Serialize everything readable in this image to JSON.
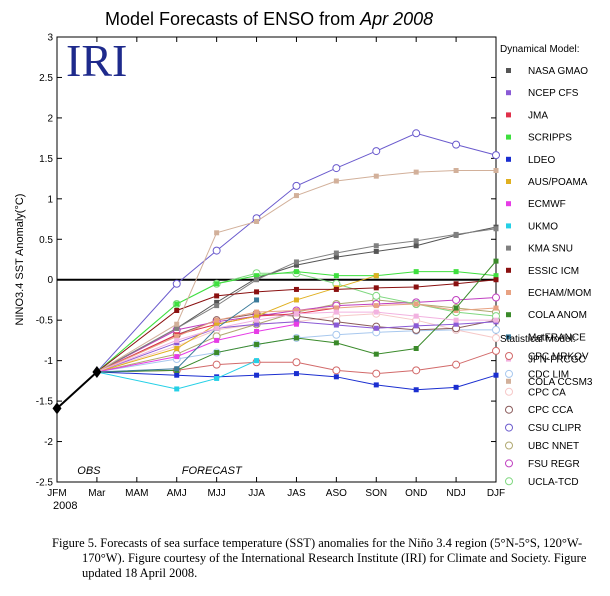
{
  "chart_data": {
    "type": "line",
    "title_main": "Model Forecasts of ENSO from",
    "title_italic": "Apr 2008",
    "logo": "IRI",
    "ylabel": "NINO3.4 SST Anomaly(°C)",
    "ylim": [
      -2.5,
      3
    ],
    "yticks": [
      "-2.5",
      "-2",
      "-1.5",
      "-1",
      "-0.5",
      "0",
      "0.5",
      "1",
      "1.5",
      "2",
      "2.5",
      "3"
    ],
    "categories": [
      "JFM",
      "Mar",
      "MAM",
      "AMJ",
      "MJJ",
      "JJA",
      "JAS",
      "ASO",
      "SON",
      "OND",
      "NDJ",
      "DJF"
    ],
    "year_label": "2008",
    "obs_label": "OBS",
    "forecast_label": "FORECAST",
    "observed": {
      "x": [
        0,
        1
      ],
      "values": [
        -1.59,
        -1.14
      ]
    },
    "dynamical_header": "Dynamical Model:",
    "statistical_header": "Statistical Model:",
    "dynamical": [
      {
        "name": "NASA GMAO",
        "color": "#555555",
        "values": [
          -0.6,
          -0.28,
          0.02,
          0.18,
          0.28,
          0.35,
          0.42,
          0.55,
          0.65
        ]
      },
      {
        "name": "NCEP CFS",
        "color": "#8a5ad6",
        "values": [
          -0.78,
          -0.6,
          -0.55,
          -0.52,
          -0.56,
          -0.6,
          -0.57,
          -0.55,
          -0.52
        ]
      },
      {
        "name": "JMA",
        "color": "#e0304a",
        "values": [
          -0.68,
          -0.55,
          -0.45,
          -0.42,
          -0.35
        ]
      },
      {
        "name": "SCRIPPS",
        "color": "#3ee03e",
        "values": [
          -0.3,
          -0.05,
          0.05,
          0.1,
          0.05,
          0.05,
          0.1,
          0.1,
          0.05
        ]
      },
      {
        "name": "LDEO",
        "color": "#1a2ed0",
        "values": [
          -1.18,
          -1.2,
          -1.18,
          -1.16,
          -1.2,
          -1.3,
          -1.36,
          -1.33,
          -1.18
        ]
      },
      {
        "name": "AUS/POAMA",
        "color": "#e0b020",
        "values": [
          -0.85,
          -0.55,
          -0.45,
          -0.25,
          -0.1,
          0.05
        ]
      },
      {
        "name": "ECMWF",
        "color": "#e63ce6",
        "values": [
          -0.95,
          -0.75,
          -0.64,
          -0.55
        ]
      },
      {
        "name": "UKMO",
        "color": "#25d0e6",
        "values": [
          -1.35,
          -1.22,
          -1.0
        ]
      },
      {
        "name": "KMA SNU",
        "color": "#808080",
        "values": [
          -0.6,
          -0.32,
          0.0,
          0.22,
          0.33,
          0.42,
          0.48,
          0.56,
          0.63
        ]
      },
      {
        "name": "ESSIC ICM",
        "color": "#8a1010",
        "values": [
          -0.38,
          -0.2,
          -0.15,
          -0.12,
          -0.12,
          -0.1,
          -0.09,
          -0.05,
          0.0
        ]
      },
      {
        "name": "ECHAM/MOM",
        "color": "#e8a282",
        "values": [
          -0.7,
          -0.5,
          -0.4,
          -0.38,
          -0.35,
          -0.32,
          -0.3,
          -0.38,
          -0.35
        ]
      },
      {
        "name": "COLA ANOM",
        "color": "#3a8a2a",
        "values": [
          -1.12,
          -0.9,
          -0.8,
          -0.72,
          -0.78,
          -0.92,
          -0.85,
          -0.35,
          0.23
        ]
      },
      {
        "name": "MetFRANCE",
        "color": "#3a7a9a",
        "values": [
          -1.1,
          -0.6,
          -0.25
        ]
      },
      {
        "name": "JPN-FRCGC",
        "color": "#f2b2e0",
        "values": [
          -0.75,
          -0.6,
          -0.5,
          -0.42,
          -0.4,
          -0.4,
          -0.45,
          -0.5,
          -0.5
        ]
      },
      {
        "name": "COLA CCSM3",
        "color": "#d2b09a",
        "values": [
          -0.55,
          0.58,
          0.72,
          1.04,
          1.22,
          1.28,
          1.33,
          1.35,
          1.35
        ]
      }
    ],
    "statistical": [
      {
        "name": "CPC MRKOV",
        "color": "#d26a6a",
        "values": [
          -1.12,
          -1.05,
          -1.02,
          -1.02,
          -1.12,
          -1.16,
          -1.12,
          -1.05,
          -0.88
        ]
      },
      {
        "name": "CDC LIM",
        "color": "#a8c8ee",
        "values": [
          -0.98,
          -0.9,
          -0.8,
          -0.72,
          -0.68,
          -0.65,
          -0.63,
          -0.62,
          -0.62
        ]
      },
      {
        "name": "CPC CA",
        "color": "#f6c8c8",
        "values": [
          -0.82,
          -0.62,
          -0.55,
          -0.52,
          -0.45,
          -0.42,
          -0.5,
          -0.62,
          -0.72
        ]
      },
      {
        "name": "CPC CCA",
        "color": "#8a5a5a",
        "values": [
          -0.68,
          -0.5,
          -0.42,
          -0.45,
          -0.52,
          -0.58,
          -0.62,
          -0.6,
          -0.5
        ]
      },
      {
        "name": "CSU CLIPR",
        "color": "#6a5acd",
        "values": [
          -0.05,
          0.36,
          0.76,
          1.16,
          1.38,
          1.59,
          1.81,
          1.67,
          1.54
        ]
      },
      {
        "name": "UBC NNET",
        "color": "#b0a870",
        "values": [
          -0.92,
          -0.7,
          -0.55,
          -0.4,
          -0.3,
          -0.25,
          -0.3,
          -0.35,
          -0.4
        ]
      },
      {
        "name": "FSU REGR",
        "color": "#c040c0",
        "values": [
          -0.62,
          -0.52,
          -0.45,
          -0.38,
          -0.32,
          -0.3,
          -0.28,
          -0.25,
          -0.22
        ]
      },
      {
        "name": "UCLA-TCD",
        "color": "#80d880",
        "values": [
          -0.3,
          -0.05,
          0.08,
          0.08,
          -0.05,
          -0.2,
          -0.3,
          -0.4,
          -0.45
        ]
      }
    ]
  },
  "caption": "Figure 5. Forecasts of sea surface temperature (SST) anomalies for the Niño 3.4 region (5°N-5°S, 120°W-170°W).  Figure courtesy of the International Research Institute (IRI) for Climate and Society.  Figure updated 18 April 2008."
}
